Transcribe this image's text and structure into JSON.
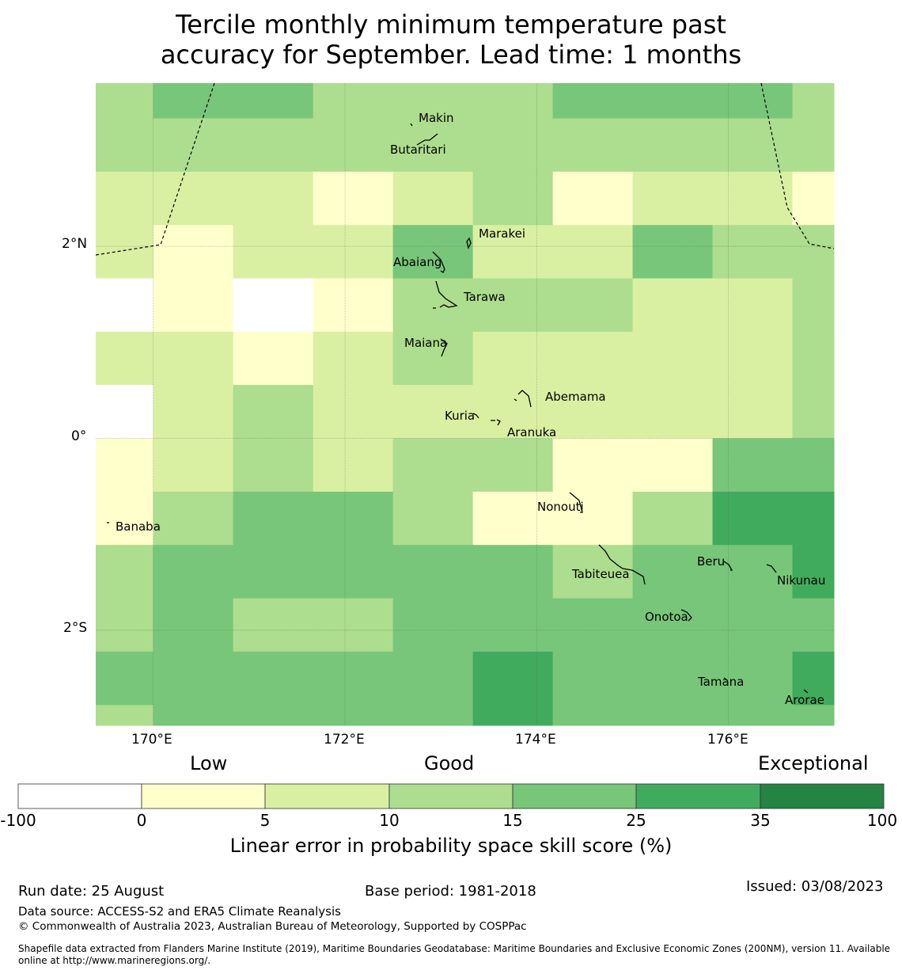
{
  "title_line1": "Tercile monthly minimum temperature past",
  "title_line2": "accuracy for September. Lead time: 1 months",
  "axes": {
    "lat_ticks": [
      "2°N",
      "0°",
      "2°S"
    ],
    "lon_ticks": [
      "170°E",
      "172°E",
      "174°E",
      "176°E"
    ],
    "lon_range": [
      169.4,
      177.1
    ],
    "lat_range": [
      -2.99,
      3.7
    ]
  },
  "grid": {
    "lon_edges": [
      169.4,
      170.0,
      170.833,
      171.667,
      172.5,
      173.333,
      174.167,
      175.0,
      175.833,
      176.667,
      177.1
    ],
    "row_top_lats": [
      3.7,
      3.333,
      2.778,
      2.222,
      1.667,
      1.111,
      0.556,
      0.0,
      -0.556,
      -1.111,
      -1.667,
      -2.222,
      -2.778
    ],
    "bottom_lat": -2.99,
    "category_index_rows": [
      [
        3,
        4,
        4,
        3,
        3,
        3,
        4,
        4,
        4,
        3
      ],
      [
        3,
        3,
        3,
        3,
        3,
        3,
        3,
        3,
        3,
        3
      ],
      [
        2,
        2,
        2,
        1,
        2,
        3,
        1,
        2,
        2,
        1
      ],
      [
        2,
        1,
        2,
        2,
        4,
        2,
        2,
        4,
        3,
        3
      ],
      [
        0,
        1,
        0,
        1,
        3,
        3,
        3,
        2,
        2,
        3
      ],
      [
        2,
        2,
        1,
        2,
        3,
        2,
        2,
        2,
        2,
        3
      ],
      [
        0,
        2,
        3,
        2,
        2,
        2,
        2,
        2,
        2,
        3
      ],
      [
        1,
        2,
        3,
        2,
        3,
        3,
        1,
        1,
        4,
        4
      ],
      [
        1,
        3,
        4,
        4,
        3,
        1,
        1,
        3,
        5,
        5
      ],
      [
        3,
        4,
        4,
        4,
        4,
        4,
        3,
        4,
        4,
        5
      ],
      [
        3,
        4,
        3,
        3,
        4,
        4,
        4,
        4,
        4,
        4
      ],
      [
        4,
        4,
        4,
        4,
        4,
        5,
        4,
        4,
        4,
        5
      ],
      [
        3,
        4,
        4,
        4,
        4,
        5,
        4,
        4,
        4,
        4
      ]
    ]
  },
  "islands": [
    "Makin",
    "Butaritari",
    "Marakei",
    "Abaiang",
    "Tarawa",
    "Maiana",
    "Abemama",
    "Kuria",
    "Aranuka",
    "Banaba",
    "Nonouti",
    "Tabiteuea",
    "Beru",
    "Nikunau",
    "Onotoa",
    "Tamana",
    "Arorae"
  ],
  "legend": {
    "categories": [
      "Low",
      "Good",
      "Exceptional"
    ],
    "colors": [
      "#ffffff",
      "#ffffcc",
      "#d9f0a3",
      "#addd8e",
      "#78c679",
      "#41ab5d",
      "#238443"
    ],
    "ticks": [
      "-100",
      "0",
      "5",
      "10",
      "15",
      "25",
      "35",
      "100"
    ],
    "title": "Linear error in probability space skill score (%)"
  },
  "footer": {
    "run_date": "Run date: 25 August",
    "base_period": "Base period: 1981-2018",
    "issued": "Issued: 03/08/2023",
    "data_source": "Data source: ACCESS-S2 and ERA5 Climate Reanalysis",
    "copyright": "© Commonwealth of Australia 2023, Australian Bureau of Meteorology, Supported by COSPPac",
    "shapefile_line1": "Shapefile data extracted from Flanders Marine Institute (2019), Maritime Boundaries Geodatabase: Maritime Boundaries and Exclusive Economic Zones (200NM), version 11. Available",
    "shapefile_line2": "online at http://www.marineregions.org/."
  }
}
